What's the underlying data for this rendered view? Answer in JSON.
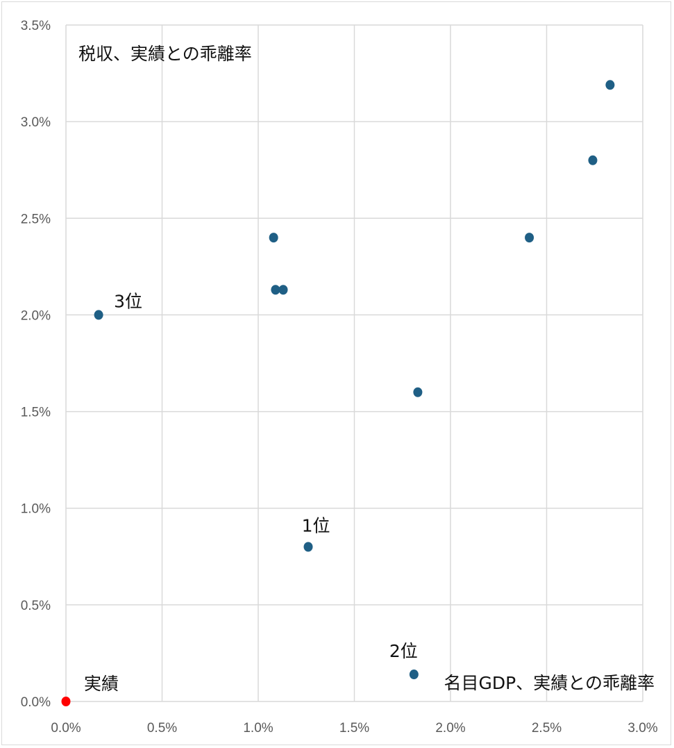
{
  "chart_data": {
    "type": "scatter",
    "title": "",
    "xlabel": "名目GDP、実績との乖離率",
    "ylabel": "税収、実績との乖離率",
    "xlim": [
      0,
      3.0
    ],
    "ylim": [
      0,
      3.5
    ],
    "x_ticks": [
      "0.0%",
      "0.5%",
      "1.0%",
      "1.5%",
      "2.0%",
      "2.5%",
      "3.0%"
    ],
    "y_ticks": [
      "0.0%",
      "0.5%",
      "1.0%",
      "1.5%",
      "2.0%",
      "2.5%",
      "3.0%",
      "3.5%"
    ],
    "grid": true,
    "series": [
      {
        "color": "#1f5f85",
        "points": [
          {
            "x": 0.17,
            "y": 2.0
          },
          {
            "x": 1.08,
            "y": 2.4
          },
          {
            "x": 1.09,
            "y": 2.13
          },
          {
            "x": 1.13,
            "y": 2.13
          },
          {
            "x": 1.26,
            "y": 0.8
          },
          {
            "x": 1.81,
            "y": 0.14
          },
          {
            "x": 1.83,
            "y": 1.6
          },
          {
            "x": 2.41,
            "y": 2.4
          },
          {
            "x": 2.74,
            "y": 2.8
          },
          {
            "x": 2.83,
            "y": 3.19
          }
        ]
      },
      {
        "name": "実績",
        "color": "#ff0000",
        "points": [
          {
            "x": 0.0,
            "y": 0.0
          }
        ]
      }
    ],
    "annotations": [
      {
        "text": "3位",
        "x": 0.17,
        "y": 2.0
      },
      {
        "text": "1位",
        "x": 1.26,
        "y": 0.8
      },
      {
        "text": "2位",
        "x": 1.81,
        "y": 0.14
      },
      {
        "text": "実績",
        "x": 0.0,
        "y": 0.0
      }
    ]
  }
}
